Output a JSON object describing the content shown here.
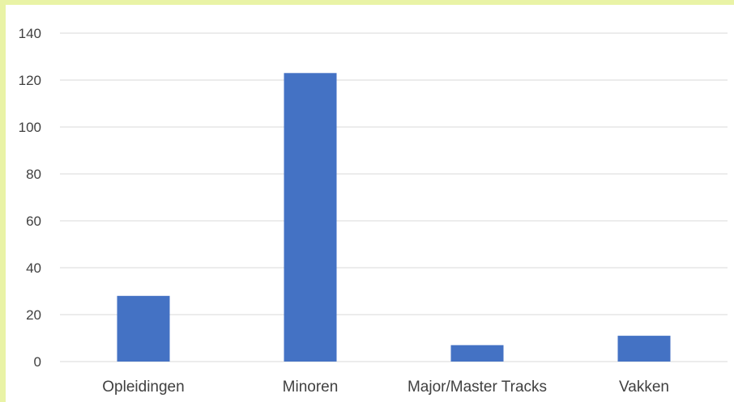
{
  "chart_data": {
    "type": "bar",
    "categories": [
      "Opleidingen",
      "Minoren",
      "Major/Master Tracks",
      "Vakken"
    ],
    "values": [
      28,
      123,
      7,
      11
    ],
    "ylim": [
      0,
      140
    ],
    "yticks": [
      0,
      20,
      40,
      60,
      80,
      100,
      120,
      140
    ],
    "grid": true,
    "legend": "none",
    "colors": {
      "bar": "#4472c4",
      "grid": "#d9d9d9",
      "border": "#e9f3a6"
    }
  }
}
